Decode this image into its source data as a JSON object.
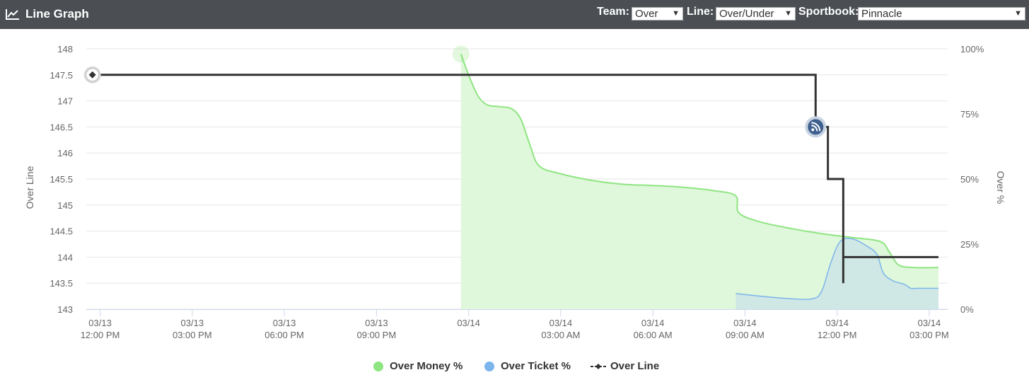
{
  "header": {
    "title": "Line Graph",
    "team_label": "Team:",
    "team_value": "Over",
    "line_label": "Line:",
    "line_value": "Over/Under",
    "sportsbook_label": "Sportbook:",
    "sportsbook_value": "Pinnacle"
  },
  "icons": {
    "title": "line-chart-icon",
    "dropdown": "triangle-down-icon",
    "event_marker": "rss-icon"
  },
  "colors": {
    "header_bg": "#4b4f54",
    "money": "#8ee581",
    "money_fill": "#dff7da",
    "ticket": "#7cb5ec",
    "ticket_fill": "#cde5e6",
    "line": "#333333"
  },
  "legend": {
    "money": "Over Money %",
    "ticket": "Over Ticket %",
    "line": "Over Line"
  },
  "chart_data": {
    "type": "line",
    "ylabel": "Over Line",
    "y2label": "Over %",
    "ylim": [
      143,
      148
    ],
    "y2lim": [
      0,
      100
    ],
    "y_ticks": [
      "148",
      "147.5",
      "147",
      "146.5",
      "146",
      "145.5",
      "145",
      "144.5",
      "144",
      "143.5",
      "143"
    ],
    "y2_ticks": [
      "100%",
      "75%",
      "50%",
      "25%",
      "0%"
    ],
    "x_ticks": [
      {
        "date": "03/13",
        "time": "12:00 PM",
        "h": 0
      },
      {
        "date": "03/13",
        "time": "03:00 PM",
        "h": 3
      },
      {
        "date": "03/13",
        "time": "06:00 PM",
        "h": 6
      },
      {
        "date": "03/13",
        "time": "09:00 PM",
        "h": 9
      },
      {
        "date": "03/14",
        "time": "",
        "h": 12
      },
      {
        "date": "03/14",
        "time": "03:00 AM",
        "h": 15
      },
      {
        "date": "03/14",
        "time": "06:00 AM",
        "h": 18
      },
      {
        "date": "03/14",
        "time": "09:00 AM",
        "h": 21
      },
      {
        "date": "03/14",
        "time": "12:00 PM",
        "h": 24
      },
      {
        "date": "03/14",
        "time": "03:00 PM",
        "h": 27
      }
    ],
    "xlim": [
      -0.45,
      27.6
    ],
    "grid": true,
    "legend_position": "bottom",
    "series": [
      {
        "name": "Over Money %",
        "axis": "right",
        "points": [
          [
            11.75,
            98
          ],
          [
            12.0,
            90
          ],
          [
            12.3,
            82
          ],
          [
            12.6,
            78.5
          ],
          [
            13.0,
            77.8
          ],
          [
            13.4,
            77
          ],
          [
            13.7,
            73
          ],
          [
            14.0,
            63
          ],
          [
            14.3,
            55
          ],
          [
            15.0,
            52
          ],
          [
            16.0,
            49.5
          ],
          [
            17.0,
            48
          ],
          [
            18.0,
            47.5
          ],
          [
            19.0,
            46.8
          ],
          [
            20.0,
            45.5
          ],
          [
            20.7,
            43.5
          ],
          [
            20.8,
            37
          ],
          [
            21.5,
            33.5
          ],
          [
            22.5,
            31
          ],
          [
            23.5,
            29
          ],
          [
            24.5,
            27.5
          ],
          [
            25.4,
            26
          ],
          [
            25.7,
            22
          ],
          [
            26.0,
            17
          ],
          [
            26.5,
            16
          ],
          [
            27.3,
            16
          ]
        ]
      },
      {
        "name": "Over Ticket %",
        "axis": "right",
        "points": [
          [
            20.7,
            6
          ],
          [
            21.5,
            5
          ],
          [
            22.5,
            4
          ],
          [
            23.2,
            4
          ],
          [
            23.5,
            7
          ],
          [
            23.8,
            18
          ],
          [
            24.1,
            26
          ],
          [
            24.5,
            27
          ],
          [
            25.0,
            24
          ],
          [
            25.3,
            21
          ],
          [
            25.5,
            14
          ],
          [
            25.8,
            11
          ],
          [
            26.2,
            9.5
          ],
          [
            26.4,
            8
          ],
          [
            26.6,
            8
          ],
          [
            27.3,
            8
          ]
        ]
      },
      {
        "name": "Over Line",
        "axis": "left",
        "points": [
          [
            -0.25,
            147.5
          ],
          [
            23.3,
            147.5
          ],
          [
            23.3,
            146.5
          ],
          [
            23.7,
            146.5
          ],
          [
            23.7,
            145.5
          ],
          [
            24.2,
            145.5
          ],
          [
            24.2,
            143.5
          ],
          [
            24.2,
            144
          ],
          [
            27.3,
            144
          ]
        ]
      }
    ]
  }
}
